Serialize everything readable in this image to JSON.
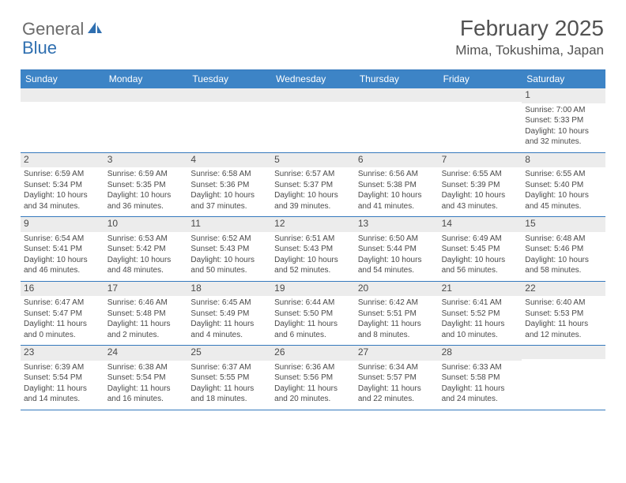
{
  "logo": {
    "word1": "General",
    "word2": "Blue"
  },
  "title": "February 2025",
  "location": "Mima, Tokushima, Japan",
  "colors": {
    "header_bar": "#3d84c6",
    "border": "#3579bd",
    "daynum_bg": "#ececec",
    "text": "#4a4a4a",
    "logo_gray": "#6b6b6b",
    "logo_blue": "#2f6fb0"
  },
  "weekdays": [
    "Sunday",
    "Monday",
    "Tuesday",
    "Wednesday",
    "Thursday",
    "Friday",
    "Saturday"
  ],
  "weeks": [
    [
      {
        "n": "",
        "sr": "",
        "ss": "",
        "dl1": "",
        "dl2": ""
      },
      {
        "n": "",
        "sr": "",
        "ss": "",
        "dl1": "",
        "dl2": ""
      },
      {
        "n": "",
        "sr": "",
        "ss": "",
        "dl1": "",
        "dl2": ""
      },
      {
        "n": "",
        "sr": "",
        "ss": "",
        "dl1": "",
        "dl2": ""
      },
      {
        "n": "",
        "sr": "",
        "ss": "",
        "dl1": "",
        "dl2": ""
      },
      {
        "n": "",
        "sr": "",
        "ss": "",
        "dl1": "",
        "dl2": ""
      },
      {
        "n": "1",
        "sr": "Sunrise: 7:00 AM",
        "ss": "Sunset: 5:33 PM",
        "dl1": "Daylight: 10 hours",
        "dl2": "and 32 minutes."
      }
    ],
    [
      {
        "n": "2",
        "sr": "Sunrise: 6:59 AM",
        "ss": "Sunset: 5:34 PM",
        "dl1": "Daylight: 10 hours",
        "dl2": "and 34 minutes."
      },
      {
        "n": "3",
        "sr": "Sunrise: 6:59 AM",
        "ss": "Sunset: 5:35 PM",
        "dl1": "Daylight: 10 hours",
        "dl2": "and 36 minutes."
      },
      {
        "n": "4",
        "sr": "Sunrise: 6:58 AM",
        "ss": "Sunset: 5:36 PM",
        "dl1": "Daylight: 10 hours",
        "dl2": "and 37 minutes."
      },
      {
        "n": "5",
        "sr": "Sunrise: 6:57 AM",
        "ss": "Sunset: 5:37 PM",
        "dl1": "Daylight: 10 hours",
        "dl2": "and 39 minutes."
      },
      {
        "n": "6",
        "sr": "Sunrise: 6:56 AM",
        "ss": "Sunset: 5:38 PM",
        "dl1": "Daylight: 10 hours",
        "dl2": "and 41 minutes."
      },
      {
        "n": "7",
        "sr": "Sunrise: 6:55 AM",
        "ss": "Sunset: 5:39 PM",
        "dl1": "Daylight: 10 hours",
        "dl2": "and 43 minutes."
      },
      {
        "n": "8",
        "sr": "Sunrise: 6:55 AM",
        "ss": "Sunset: 5:40 PM",
        "dl1": "Daylight: 10 hours",
        "dl2": "and 45 minutes."
      }
    ],
    [
      {
        "n": "9",
        "sr": "Sunrise: 6:54 AM",
        "ss": "Sunset: 5:41 PM",
        "dl1": "Daylight: 10 hours",
        "dl2": "and 46 minutes."
      },
      {
        "n": "10",
        "sr": "Sunrise: 6:53 AM",
        "ss": "Sunset: 5:42 PM",
        "dl1": "Daylight: 10 hours",
        "dl2": "and 48 minutes."
      },
      {
        "n": "11",
        "sr": "Sunrise: 6:52 AM",
        "ss": "Sunset: 5:43 PM",
        "dl1": "Daylight: 10 hours",
        "dl2": "and 50 minutes."
      },
      {
        "n": "12",
        "sr": "Sunrise: 6:51 AM",
        "ss": "Sunset: 5:43 PM",
        "dl1": "Daylight: 10 hours",
        "dl2": "and 52 minutes."
      },
      {
        "n": "13",
        "sr": "Sunrise: 6:50 AM",
        "ss": "Sunset: 5:44 PM",
        "dl1": "Daylight: 10 hours",
        "dl2": "and 54 minutes."
      },
      {
        "n": "14",
        "sr": "Sunrise: 6:49 AM",
        "ss": "Sunset: 5:45 PM",
        "dl1": "Daylight: 10 hours",
        "dl2": "and 56 minutes."
      },
      {
        "n": "15",
        "sr": "Sunrise: 6:48 AM",
        "ss": "Sunset: 5:46 PM",
        "dl1": "Daylight: 10 hours",
        "dl2": "and 58 minutes."
      }
    ],
    [
      {
        "n": "16",
        "sr": "Sunrise: 6:47 AM",
        "ss": "Sunset: 5:47 PM",
        "dl1": "Daylight: 11 hours",
        "dl2": "and 0 minutes."
      },
      {
        "n": "17",
        "sr": "Sunrise: 6:46 AM",
        "ss": "Sunset: 5:48 PM",
        "dl1": "Daylight: 11 hours",
        "dl2": "and 2 minutes."
      },
      {
        "n": "18",
        "sr": "Sunrise: 6:45 AM",
        "ss": "Sunset: 5:49 PM",
        "dl1": "Daylight: 11 hours",
        "dl2": "and 4 minutes."
      },
      {
        "n": "19",
        "sr": "Sunrise: 6:44 AM",
        "ss": "Sunset: 5:50 PM",
        "dl1": "Daylight: 11 hours",
        "dl2": "and 6 minutes."
      },
      {
        "n": "20",
        "sr": "Sunrise: 6:42 AM",
        "ss": "Sunset: 5:51 PM",
        "dl1": "Daylight: 11 hours",
        "dl2": "and 8 minutes."
      },
      {
        "n": "21",
        "sr": "Sunrise: 6:41 AM",
        "ss": "Sunset: 5:52 PM",
        "dl1": "Daylight: 11 hours",
        "dl2": "and 10 minutes."
      },
      {
        "n": "22",
        "sr": "Sunrise: 6:40 AM",
        "ss": "Sunset: 5:53 PM",
        "dl1": "Daylight: 11 hours",
        "dl2": "and 12 minutes."
      }
    ],
    [
      {
        "n": "23",
        "sr": "Sunrise: 6:39 AM",
        "ss": "Sunset: 5:54 PM",
        "dl1": "Daylight: 11 hours",
        "dl2": "and 14 minutes."
      },
      {
        "n": "24",
        "sr": "Sunrise: 6:38 AM",
        "ss": "Sunset: 5:54 PM",
        "dl1": "Daylight: 11 hours",
        "dl2": "and 16 minutes."
      },
      {
        "n": "25",
        "sr": "Sunrise: 6:37 AM",
        "ss": "Sunset: 5:55 PM",
        "dl1": "Daylight: 11 hours",
        "dl2": "and 18 minutes."
      },
      {
        "n": "26",
        "sr": "Sunrise: 6:36 AM",
        "ss": "Sunset: 5:56 PM",
        "dl1": "Daylight: 11 hours",
        "dl2": "and 20 minutes."
      },
      {
        "n": "27",
        "sr": "Sunrise: 6:34 AM",
        "ss": "Sunset: 5:57 PM",
        "dl1": "Daylight: 11 hours",
        "dl2": "and 22 minutes."
      },
      {
        "n": "28",
        "sr": "Sunrise: 6:33 AM",
        "ss": "Sunset: 5:58 PM",
        "dl1": "Daylight: 11 hours",
        "dl2": "and 24 minutes."
      },
      {
        "n": "",
        "sr": "",
        "ss": "",
        "dl1": "",
        "dl2": ""
      }
    ]
  ]
}
